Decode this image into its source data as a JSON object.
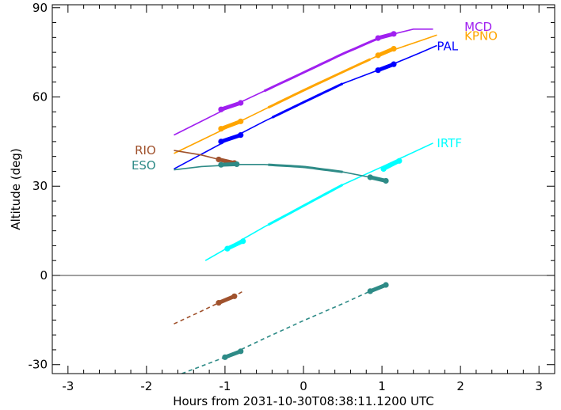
{
  "chart_data": {
    "type": "line",
    "title": "",
    "xlabel": "Hours from 2031-10-30T08:38:11.1200 UTC",
    "ylabel": "Altitude (deg)",
    "xlim": [
      -3.2,
      3.2
    ],
    "ylim": [
      -33,
      91
    ],
    "xticks": [
      -3,
      -2,
      -1,
      0,
      1,
      2,
      3
    ],
    "xtick_labels": [
      "-3",
      "-2",
      "-1",
      "0",
      "1",
      "2",
      "3"
    ],
    "yticks": [
      -30,
      0,
      30,
      60,
      90
    ],
    "ytick_labels": [
      "-30",
      "0",
      "30",
      "60",
      "90"
    ],
    "zero_line": 0,
    "grid": false,
    "series": [
      {
        "name": "MCD",
        "color": "#a020f0",
        "label_at": [
          2.05,
          83.5
        ],
        "points": [
          [
            -1.65,
            47.2
          ],
          [
            -1.0,
            55.8
          ],
          [
            -0.5,
            62.0
          ],
          [
            0.0,
            68.2
          ],
          [
            0.5,
            74.5
          ],
          [
            1.0,
            80.2
          ],
          [
            1.4,
            82.8
          ],
          [
            1.65,
            82.8
          ]
        ],
        "thick": [
          [
            -0.5,
            0.95
          ]
        ],
        "dots": [
          [
            -1.05,
            55.8
          ],
          [
            -0.8,
            58.0
          ],
          [
            0.95,
            79.8
          ],
          [
            1.15,
            81.2
          ]
        ]
      },
      {
        "name": "KPNO",
        "color": "#ffa500",
        "label_at": [
          2.05,
          80.5
        ],
        "points": [
          [
            -1.65,
            41.0
          ],
          [
            -1.0,
            49.3
          ],
          [
            -0.5,
            55.8
          ],
          [
            0.0,
            62.2
          ],
          [
            0.5,
            68.4
          ],
          [
            1.0,
            74.5
          ],
          [
            1.5,
            79.0
          ],
          [
            1.7,
            80.8
          ]
        ],
        "thick": [
          [
            -0.45,
            0.85
          ]
        ],
        "dots": [
          [
            -1.05,
            49.3
          ],
          [
            -0.8,
            51.8
          ],
          [
            0.95,
            74.0
          ],
          [
            1.15,
            76.2
          ]
        ]
      },
      {
        "name": "PAL",
        "color": "#0000ff",
        "label_at": [
          1.7,
          77.0
        ],
        "points": [
          [
            -1.65,
            35.8
          ],
          [
            -1.0,
            45.0
          ],
          [
            -0.5,
            51.8
          ],
          [
            0.0,
            58.2
          ],
          [
            0.5,
            64.5
          ],
          [
            1.0,
            69.5
          ],
          [
            1.5,
            75.0
          ],
          [
            1.7,
            77.3
          ]
        ],
        "thick": [
          [
            -0.4,
            0.5
          ]
        ],
        "dots": [
          [
            -1.05,
            45.0
          ],
          [
            -0.8,
            47.2
          ],
          [
            0.95,
            69.0
          ],
          [
            1.15,
            71.0
          ]
        ]
      },
      {
        "name": "IRTF",
        "color": "#00ffff",
        "label_at": [
          1.7,
          44.5
        ],
        "points": [
          [
            -1.25,
            5.0
          ],
          [
            -0.5,
            16.3
          ],
          [
            0.0,
            23.4
          ],
          [
            0.5,
            30.5
          ],
          [
            1.0,
            36.5
          ],
          [
            1.65,
            44.5
          ]
        ],
        "thick": [
          [
            -0.45,
            0.5
          ]
        ],
        "dots": [
          [
            -0.97,
            9.0
          ],
          [
            -0.77,
            11.5
          ],
          [
            1.02,
            35.8
          ],
          [
            1.22,
            38.5
          ]
        ]
      },
      {
        "name": "RIO",
        "color": "#a0522d",
        "label_at": [
          -1.88,
          42.0
        ],
        "points": [
          [
            -1.65,
            42.0
          ],
          [
            -1.3,
            40.5
          ],
          [
            -1.08,
            39.0
          ],
          [
            -0.88,
            37.8
          ]
        ],
        "thick": [],
        "dots": [
          [
            -1.08,
            39.0
          ],
          [
            -0.88,
            37.8
          ]
        ],
        "below": {
          "points": [
            [
              -1.65,
              -16.3
            ],
            [
              -1.3,
              -12.0
            ],
            [
              -1.08,
              -9.2
            ],
            [
              -0.88,
              -7.0
            ],
            [
              -0.75,
              -5.0
            ]
          ],
          "dots": [
            [
              -1.08,
              -9.2
            ],
            [
              -0.88,
              -7.0
            ]
          ]
        }
      },
      {
        "name": "ESO",
        "color": "#2e8b87",
        "label_at": [
          -1.88,
          37.0
        ],
        "points": [
          [
            -1.65,
            35.5
          ],
          [
            -1.3,
            36.6
          ],
          [
            -0.8,
            37.3
          ],
          [
            -0.5,
            37.3
          ],
          [
            0.0,
            36.5
          ],
          [
            0.5,
            34.8
          ],
          [
            0.85,
            33.0
          ],
          [
            1.05,
            31.8
          ]
        ],
        "thick": [
          [
            -0.45,
            0.5
          ]
        ],
        "dots": [
          [
            -1.05,
            37.2
          ],
          [
            -0.85,
            37.4
          ],
          [
            0.85,
            33.0
          ],
          [
            1.05,
            31.8
          ]
        ],
        "below": {
          "points": [
            [
              -1.55,
              -33.0
            ],
            [
              -1.0,
              -27.5
            ],
            [
              -0.5,
              -21.2
            ],
            [
              0.0,
              -15.2
            ],
            [
              0.5,
              -9.5
            ],
            [
              0.85,
              -5.3
            ],
            [
              1.05,
              -3.2
            ]
          ],
          "dots": [
            [
              -1.0,
              -27.5
            ],
            [
              -0.8,
              -25.5
            ],
            [
              0.85,
              -5.3
            ],
            [
              1.05,
              -3.2
            ]
          ]
        }
      }
    ]
  }
}
